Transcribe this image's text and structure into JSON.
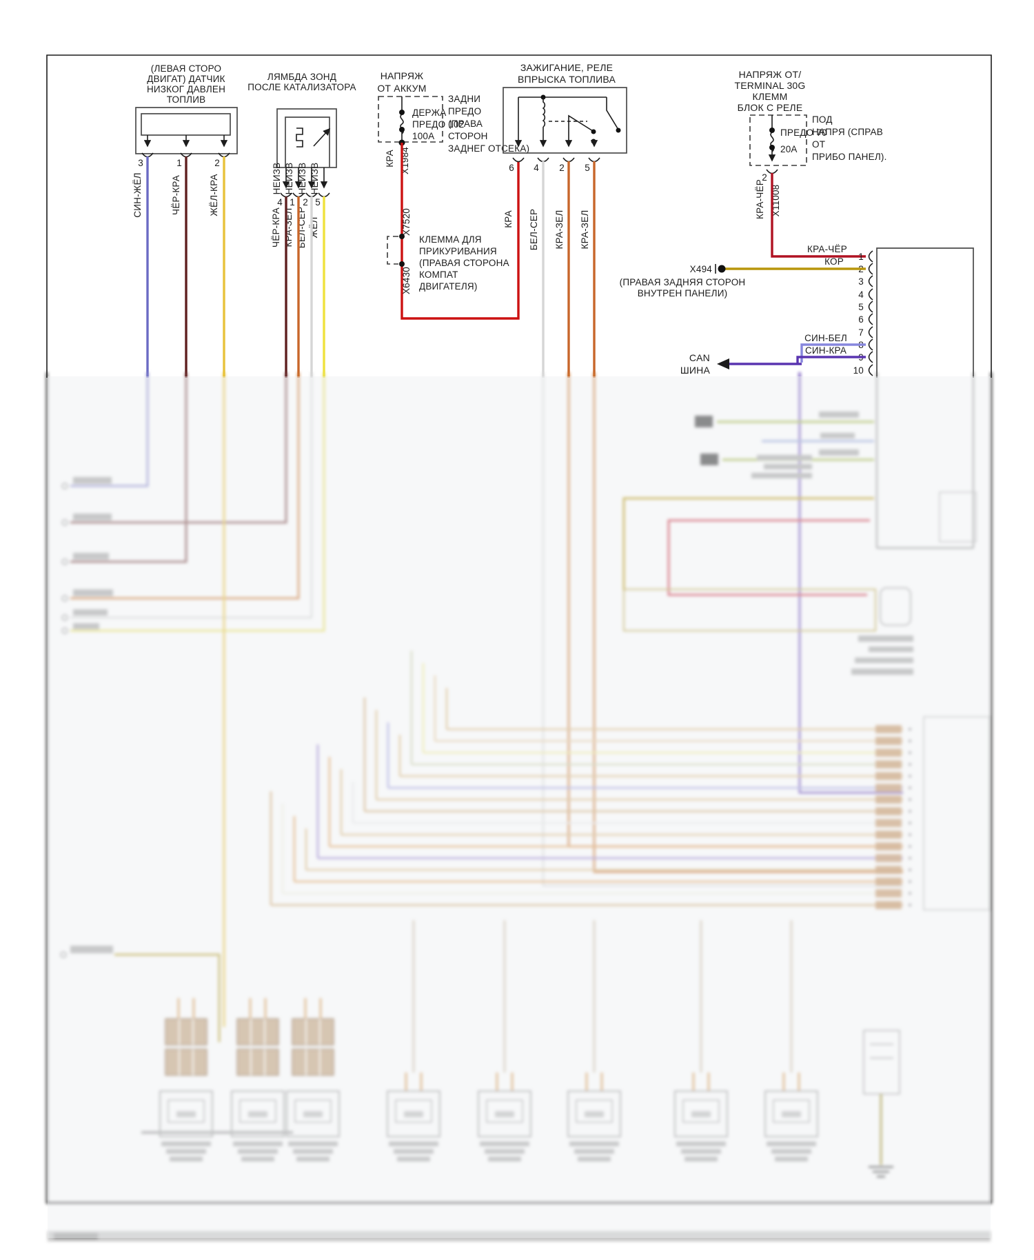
{
  "doc": {
    "kind": "wiring-diagram",
    "language": "ru"
  },
  "colors": {
    "frame": "#1c1c1c",
    "wire_blue": "#6b6bc4",
    "wire_maroon": "#5f2020",
    "wire_yellow_red": "#e8c23a",
    "wire_red": "#cc1111",
    "wire_dark_red": "#b01222",
    "wire_orange": "#c8662a",
    "wire_white": "#d6d6d6",
    "wire_yellow": "#efe23c",
    "wire_brown": "#b8960c",
    "wire_blue_white": "#8787dd",
    "wire_blue_red": "#5a35b0",
    "wire_green": "#9ab23a"
  },
  "sensor": {
    "title": [
      "(ЛЕВАЯ СТОРО",
      "ДВИГАТ) ДАТЧИК",
      "НИЗКОГ ДАВЛЕН",
      "ТОПЛИВ"
    ],
    "pins": [
      {
        "num": "3",
        "wire": "СИН-ЖЁЛ"
      },
      {
        "num": "1",
        "wire": "ЧЁР-КРА"
      },
      {
        "num": "2",
        "wire": "ЖЁЛ-КРА"
      }
    ]
  },
  "lambda": {
    "title": [
      "ЛЯМБДА ЗОНД",
      "ПОСЛЕ КАТАЛИЗАТОРА"
    ],
    "pins": [
      {
        "num": "4",
        "tag": "НЕИЗВ",
        "wire": "ЧЁР-КРА"
      },
      {
        "num": "1",
        "tag": "НЕИЗВ",
        "wire": "КРА-ЗЕЛ"
      },
      {
        "num": "2",
        "tag": "НЕИЗВ",
        "wire": "БЕЛ-СЕР"
      },
      {
        "num": "5",
        "tag": "НЕИЗВ",
        "wire": "ЖЁЛ"
      }
    ]
  },
  "battery_feed": {
    "title": [
      "НАПРЯЖ",
      "ОТ АККУМ"
    ],
    "fuse": [
      "ДЕРЖА",
      "ПРЕДО 102",
      "100А"
    ],
    "note": [
      "ЗАДНИ",
      "ПРЕДО",
      "(ПРАВА",
      "СТОРОН",
      "ЗАДНЕГ ОТСЕКА)"
    ],
    "wire": "КРА",
    "connector": "X1984"
  },
  "lighter": {
    "x7520": "X7520",
    "x6430": "X6430",
    "note": [
      "КЛЕММА ДЛЯ",
      "ПРИКУРИВАНИЯ",
      "(ПРАВАЯ СТОРОНА",
      "КОМПАТ",
      "ДВИГАТЕЛЯ)"
    ]
  },
  "relay": {
    "title": [
      "ЗАЖИГАНИЕ, РЕЛЕ",
      "ВПРЫСКА ТОПЛИВА"
    ],
    "pins": [
      {
        "num": "6",
        "wire": "КРА"
      },
      {
        "num": "4",
        "wire": "БЕЛ-СЕР"
      },
      {
        "num": "2",
        "wire": "КРА-ЗЕЛ"
      },
      {
        "num": "5",
        "wire": "КРА-ЗЕЛ"
      }
    ]
  },
  "terminal30g": {
    "title": [
      "НАПРЯЖ ОТ/",
      "TERMINAL 30G",
      "КЛЕММ",
      "БЛОК С РЕЛЕ"
    ],
    "fuse": [
      "ПРЕДО 70",
      "20А"
    ],
    "note": [
      "ПОД",
      "НАПРЯ (СПРАВ",
      "ОТ",
      "ПРИБО ПАНЕЛ)."
    ],
    "pin": "2",
    "wire": "КРА-ЧЁР",
    "connector": "X11008"
  },
  "x494": {
    "label": "X494",
    "note": [
      "(ПРАВАЯ ЗАДНЯЯ СТОРОН",
      "ВНУТРЕН ПАНЕЛИ)"
    ]
  },
  "can_bus": {
    "label": [
      "CAN",
      "ШИНА"
    ]
  },
  "ecu_connector": {
    "pins": [
      {
        "num": "1",
        "wire": "КРА-ЧЁР"
      },
      {
        "num": "2",
        "wire": "КОР"
      },
      {
        "num": "3",
        "wire": ""
      },
      {
        "num": "4",
        "wire": ""
      },
      {
        "num": "5",
        "wire": ""
      },
      {
        "num": "6",
        "wire": ""
      },
      {
        "num": "7",
        "wire": ""
      },
      {
        "num": "8",
        "wire": "СИН-БЕЛ"
      },
      {
        "num": "9",
        "wire": "СИН-КРА"
      },
      {
        "num": "10",
        "wire": ""
      }
    ]
  }
}
